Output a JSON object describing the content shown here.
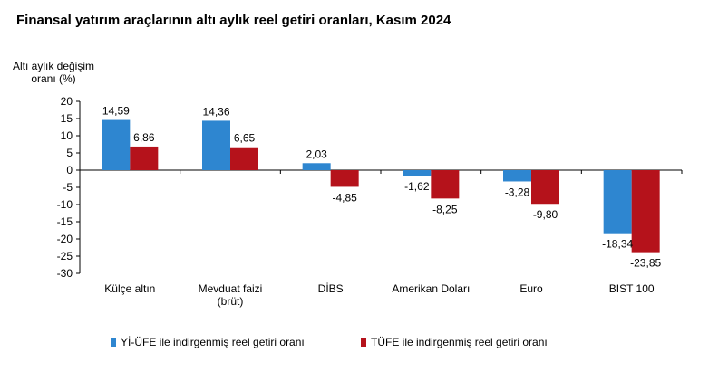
{
  "chart_data": {
    "type": "bar",
    "title": "Finansal yatırım araçlarının altı aylık reel getiri oranları, Kasım 2024",
    "ylabel": [
      "Altı aylık değişim",
      "oranı (%)"
    ],
    "xlabel": "",
    "ylim": [
      -30,
      20
    ],
    "yticks": [
      20,
      15,
      10,
      5,
      0,
      -5,
      -10,
      -15,
      -20,
      -25,
      -30
    ],
    "ytick_labels": [
      "20",
      "15",
      "10",
      "5",
      "0",
      "-5",
      "-10",
      "-15",
      "-20",
      "-25",
      "-30"
    ],
    "categories": [
      [
        "Külçe altın"
      ],
      [
        "Mevduat faizi",
        "(brüt)"
      ],
      [
        "DİBS"
      ],
      [
        "Amerikan Doları"
      ],
      [
        "Euro"
      ],
      [
        "BIST 100"
      ]
    ],
    "series": [
      {
        "name": "Yİ-ÜFE ile indirgenmiş reel getiri oranı",
        "color": "#2E86D0",
        "values": [
          14.59,
          14.36,
          2.03,
          -1.62,
          -3.28,
          -18.34
        ],
        "labels": [
          "14,59",
          "14,36",
          "2,03",
          "-1,62",
          "-3,28",
          "-18,34"
        ]
      },
      {
        "name": "TÜFE ile indirgenmiş reel getiri oranı",
        "color": "#B5121B",
        "values": [
          6.86,
          6.65,
          -4.85,
          -8.25,
          -9.8,
          -23.85
        ],
        "labels": [
          "6,86",
          "6,65",
          "-4,85",
          "-8,25",
          "-9,80",
          "-23,85"
        ]
      }
    ],
    "legend_position": "bottom",
    "grid": false
  }
}
